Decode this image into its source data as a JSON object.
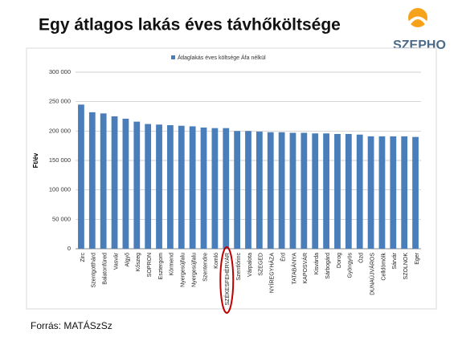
{
  "header": {
    "title": "Egy átlagos lakás éves távhőköltsége",
    "logo": "SZEPHO"
  },
  "footer": {
    "source": "Forrás: MATÁSzSz"
  },
  "chart_data": {
    "type": "bar",
    "legend": "Átlaglakás éves költsége Áfa nélkül",
    "y_label": "Ft/év",
    "categories": [
      "Zirc",
      "Szentgotthárd",
      "Balatonfüred",
      "Vasvár",
      "Algyő",
      "Kőszeg",
      "SOPRON",
      "Esztergom",
      "Körmend",
      "Nyergesújfalu",
      "Nyergesújfalu",
      "Szentendre",
      "Komló",
      "SZÉKESFEHÉRVÁR",
      "Szentlőrinc",
      "Várpalota",
      "SZEGED",
      "NYÍREGYHÁZA",
      "Érd",
      "TATABÁNYA",
      "KAPOSVÁR",
      "Kisvárda",
      "Sárbogárd",
      "Dorog",
      "Gyöngyös",
      "Ózd",
      "DUNAÚJVÁROS",
      "Celldömölk",
      "Sárvár",
      "SZOLNOK",
      "Eger"
    ],
    "values": [
      245000,
      232000,
      230000,
      225000,
      221000,
      216000,
      212000,
      211000,
      210000,
      209000,
      208000,
      206000,
      205000,
      205000,
      200000,
      200000,
      199000,
      198000,
      198000,
      197000,
      197000,
      196000,
      196000,
      195000,
      195000,
      194000,
      191000,
      191000,
      191000,
      191000,
      190000
    ],
    "color": "#4a7ebb",
    "highlight_index": 13,
    "ylim": [
      0,
      300000
    ],
    "yticks": [
      0,
      {
        "value": 50000,
        "label": "50 000"
      },
      {
        "value": 100000,
        "label": "100 000"
      },
      {
        "value": 150000,
        "label": "150 000"
      },
      {
        "value": 200000,
        "label": "200 000"
      },
      {
        "value": 250000,
        "label": "250 000"
      },
      {
        "value": 300000,
        "label": "300 000"
      }
    ],
    "grid": true
  }
}
